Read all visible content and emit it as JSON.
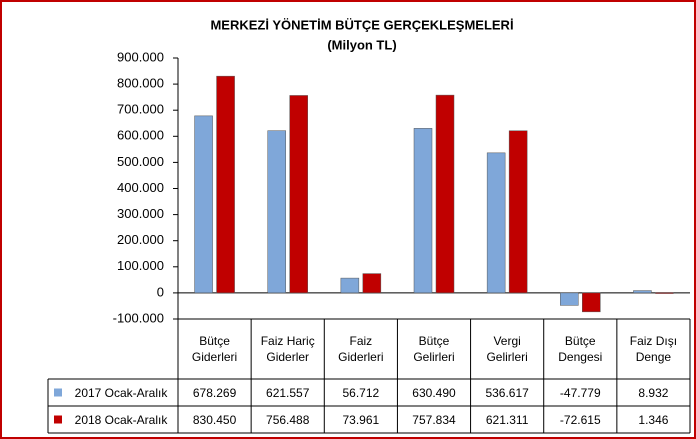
{
  "chart_data": {
    "type": "bar",
    "title": "MERKEZİ YÖNETİM BÜTÇE GERÇEKLEŞMELERİ",
    "subtitle": "(Milyon TL)",
    "categories": [
      "Bütçe Giderleri",
      "Faiz Hariç Giderler",
      "Faiz Giderleri",
      "Bütçe Gelirleri",
      "Vergi Gelirleri",
      "Bütçe Dengesi",
      "Faiz Dışı Denge"
    ],
    "series": [
      {
        "name": "2017 Ocak-Aralık",
        "color": "#7fa7d9",
        "values": [
          678269,
          621557,
          56712,
          630490,
          536617,
          -47779,
          8932
        ],
        "value_labels": [
          "678.269",
          "621.557",
          "56.712",
          "630.490",
          "536.617",
          "-47.779",
          "8.932"
        ]
      },
      {
        "name": "2018 Ocak-Aralık",
        "color": "#c00000",
        "values": [
          830450,
          756488,
          73961,
          757834,
          621311,
          -72615,
          1346
        ],
        "value_labels": [
          "830.450",
          "756.488",
          "73.961",
          "757.834",
          "621.311",
          "-72.615",
          "1.346"
        ]
      }
    ],
    "ylim": [
      -100000,
      900000
    ],
    "yticks": [
      {
        "value": -100000,
        "label": "-100.000"
      },
      0,
      {
        "value": 100000,
        "label": "100.000"
      },
      {
        "value": 200000,
        "label": "200.000"
      },
      {
        "value": 300000,
        "label": "300.000"
      },
      {
        "value": 400000,
        "label": "400.000"
      },
      {
        "value": 500000,
        "label": "500.000"
      },
      {
        "value": 600000,
        "label": "600.000"
      },
      {
        "value": 700000,
        "label": "700.000"
      },
      {
        "value": 800000,
        "label": "800.000"
      },
      {
        "value": 900000,
        "label": "900.000"
      }
    ],
    "grid": false
  }
}
